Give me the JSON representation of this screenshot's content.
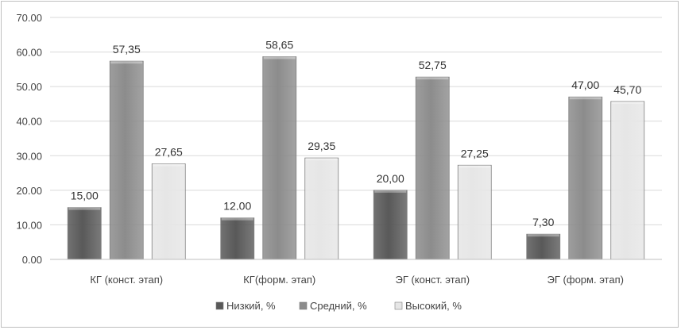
{
  "chart_data": {
    "type": "bar",
    "categories": [
      "КГ (конст. этап)",
      "КГ(форм. этап)",
      "ЭГ (конст. этап)",
      "ЭГ (форм. этап)"
    ],
    "series": [
      {
        "name": "Низкий, %",
        "values": [
          15.0,
          12.0,
          20.0,
          7.3
        ],
        "labels": [
          "15,00",
          "12.00",
          "20,00",
          "7,30"
        ],
        "color": "#595959"
      },
      {
        "name": "Средний, %",
        "values": [
          57.35,
          58.65,
          52.75,
          47.0
        ],
        "labels": [
          "57,35",
          "58,65",
          "52,75",
          "47,00"
        ],
        "color": "#8c8c8c"
      },
      {
        "name": "Высокий, %",
        "values": [
          27.65,
          29.35,
          27.25,
          45.7
        ],
        "labels": [
          "27,65",
          "29,35",
          "27,25",
          "45,70"
        ],
        "color": "#e6e6e6"
      }
    ],
    "yticks": [
      "0.00",
      "10.00",
      "20.00",
      "30.00",
      "40.00",
      "50.00",
      "60.00",
      "70.00"
    ],
    "ylim": [
      0,
      70
    ],
    "grid": true,
    "legend": "bottom"
  }
}
